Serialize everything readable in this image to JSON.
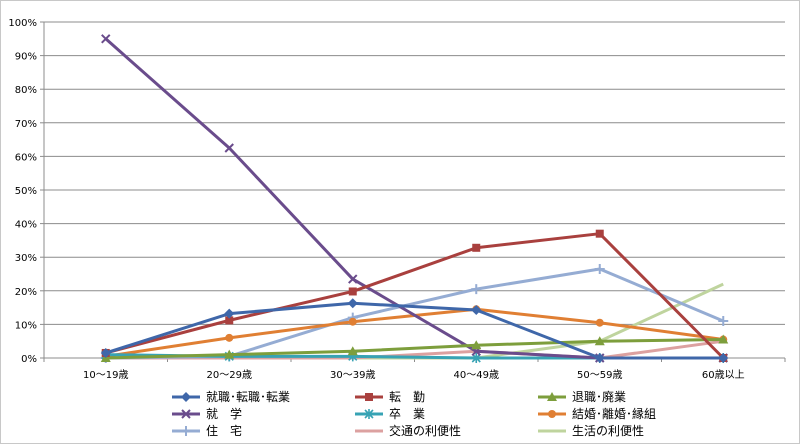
{
  "chart_data": {
    "type": "line",
    "categories": [
      "10～19歳",
      "20～29歳",
      "30～39歳",
      "40～49歳",
      "50～59歳",
      "60歳以上"
    ],
    "ylim": [
      0,
      100
    ],
    "y_ticks": [
      "0%",
      "10%",
      "20%",
      "30%",
      "40%",
      "50%",
      "60%",
      "70%",
      "80%",
      "90%",
      "100%"
    ],
    "y_unit": "%",
    "grid": true,
    "legend_position": "bottom",
    "series": [
      {
        "name": "就職･転職･転業",
        "values": [
          1.5,
          13.2,
          16.3,
          14.3,
          0.0,
          0.0
        ],
        "color": "#3f67a9",
        "marker": "diamond"
      },
      {
        "name": "転　勤",
        "values": [
          1.5,
          11.2,
          19.8,
          32.8,
          37.0,
          0.0
        ],
        "color": "#a9403e",
        "marker": "square"
      },
      {
        "name": "退職･廃業",
        "values": [
          0.0,
          1.0,
          2.0,
          3.8,
          5.0,
          5.5
        ],
        "color": "#7d9e3c",
        "marker": "triangle"
      },
      {
        "name": "就　学",
        "values": [
          95.0,
          62.5,
          23.5,
          2.0,
          0.0,
          0.0
        ],
        "color": "#6a4c8c",
        "marker": "x"
      },
      {
        "name": "卒　業",
        "values": [
          1.0,
          0.5,
          0.5,
          0.0,
          0.0,
          0.0
        ],
        "color": "#37a3b4",
        "marker": "asterisk"
      },
      {
        "name": "結婚･離婚･縁組",
        "values": [
          0.5,
          6.0,
          10.8,
          14.5,
          10.5,
          5.5
        ],
        "color": "#e07f33",
        "marker": "circle"
      },
      {
        "name": "住　宅",
        "values": [
          0.0,
          0.5,
          12.0,
          20.5,
          26.5,
          11.0
        ],
        "color": "#95acd3",
        "marker": "plus"
      },
      {
        "name": "交通の利便性",
        "values": [
          0.0,
          0.0,
          0.0,
          2.0,
          0.0,
          5.0
        ],
        "color": "#dca1a0",
        "marker": "none"
      },
      {
        "name": "生活の利便性",
        "values": [
          0.0,
          0.0,
          0.0,
          0.0,
          5.0,
          22.0
        ],
        "color": "#bfd49e",
        "marker": "none"
      }
    ]
  }
}
